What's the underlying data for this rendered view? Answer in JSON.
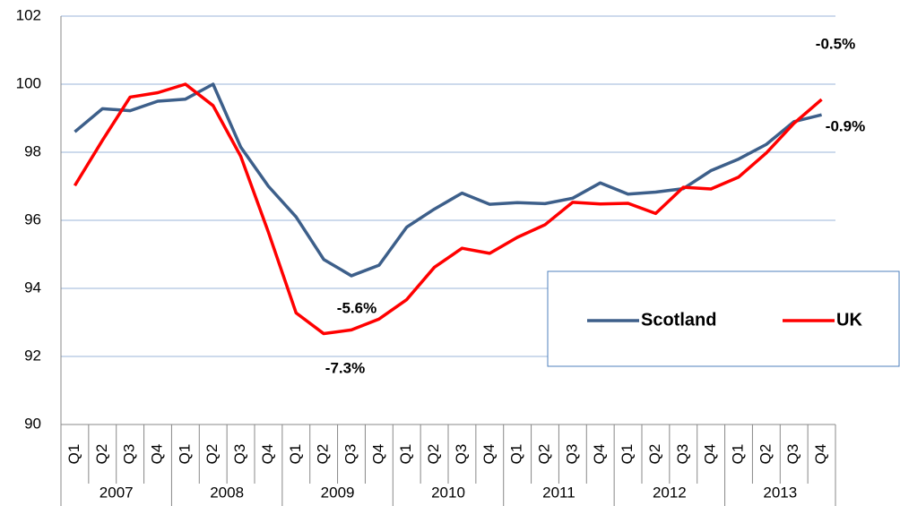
{
  "chart_data": {
    "type": "line",
    "categories": [
      "Q1",
      "Q2",
      "Q3",
      "Q4",
      "Q1",
      "Q2",
      "Q3",
      "Q4",
      "Q1",
      "Q2",
      "Q3",
      "Q4",
      "Q1",
      "Q2",
      "Q3",
      "Q4",
      "Q1",
      "Q2",
      "Q3",
      "Q4",
      "Q1",
      "Q2",
      "Q3",
      "Q4",
      "Q1",
      "Q2",
      "Q3",
      "Q4"
    ],
    "groups": [
      "2007",
      "2008",
      "2009",
      "2010",
      "2011",
      "2012",
      "2013"
    ],
    "series": [
      {
        "name": "Scotland",
        "color": "#3d5f8a",
        "values": [
          98.6,
          99.28,
          99.22,
          99.5,
          99.56,
          100.0,
          98.15,
          97.0,
          96.1,
          94.85,
          94.37,
          94.68,
          95.8,
          96.33,
          96.8,
          96.47,
          96.52,
          96.49,
          96.65,
          97.1,
          96.77,
          96.83,
          96.93,
          97.46,
          97.8,
          98.23,
          98.9,
          99.1
        ]
      },
      {
        "name": "UK",
        "color": "#ff0000",
        "values": [
          97.02,
          98.35,
          99.62,
          99.75,
          100.0,
          99.37,
          97.88,
          95.65,
          93.28,
          92.67,
          92.78,
          93.1,
          93.67,
          94.62,
          95.18,
          95.03,
          95.5,
          95.87,
          96.53,
          96.48,
          96.5,
          96.2,
          96.97,
          96.92,
          97.27,
          97.98,
          98.85,
          99.55
        ]
      }
    ],
    "annotations": [
      "-0.5%",
      "-0.9%",
      "-5.6%",
      "-7.3%"
    ],
    "ylim": [
      90,
      102
    ],
    "yticks": [
      90,
      92,
      94,
      96,
      98,
      100,
      102
    ],
    "grid": true,
    "legend": "right"
  }
}
